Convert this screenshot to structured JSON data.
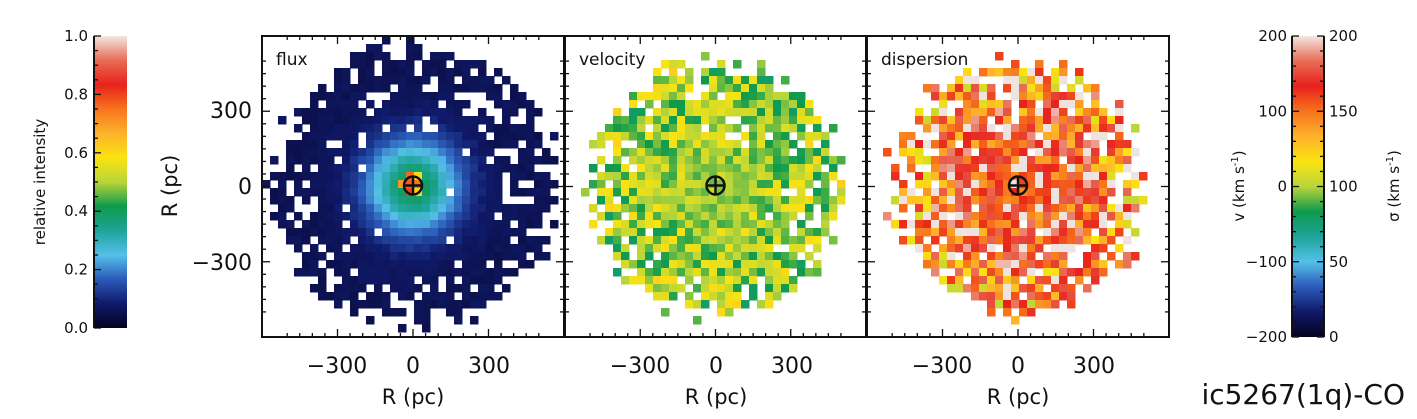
{
  "figure_label": "ic5267(1q)-CO",
  "colors": {
    "axis": "#111111",
    "colormap": [
      "#05021f",
      "#101a6a",
      "#2a5bb8",
      "#55c0ea",
      "#1ea39a",
      "#0e9a4c",
      "#b8d53a",
      "#fbe311",
      "#fdb22a",
      "#f7741d",
      "#e8211c",
      "#e86d55",
      "#f3e7e2"
    ]
  },
  "chart_data": [
    {
      "type": "heatmap",
      "title": "flux",
      "xlabel": "R (pc)",
      "ylabel": "R (pc)",
      "xlim": [
        -600,
        600
      ],
      "ylim": [
        -600,
        600
      ],
      "xticks": [
        -300,
        0,
        300
      ],
      "yticks": [
        -300,
        0,
        300
      ],
      "xtick_labels": [
        "−300",
        "0",
        "300"
      ],
      "ytick_labels": [
        "−300",
        "0",
        "300"
      ],
      "center_marker": "circle-plus at (0, 0)",
      "colorbar": "relative intensity",
      "description_values": {
        "peak_relative_intensity": 0.7,
        "outer_relative_intensity": 0.05,
        "core_radius_pc": 80
      }
    },
    {
      "type": "heatmap",
      "title": "velocity",
      "xlabel": "R (pc)",
      "xlim": [
        -600,
        600
      ],
      "ylim": [
        -600,
        600
      ],
      "xticks": [
        -300,
        0,
        300
      ],
      "xtick_labels": [
        "−300",
        "0",
        "300"
      ],
      "center_marker": "circle-plus at (0, 0)",
      "colorbar": "v (km s-1)",
      "description_values": {
        "typical_velocity_kms": 0,
        "scatter_kms": 40
      }
    },
    {
      "type": "heatmap",
      "title": "dispersion",
      "xlabel": "R (pc)",
      "xlim": [
        -600,
        600
      ],
      "ylim": [
        -600,
        600
      ],
      "xticks": [
        -300,
        0,
        300
      ],
      "xtick_labels": [
        "−300",
        "0",
        "300"
      ],
      "center_marker": "circle-plus at (0, 0)",
      "colorbar": "σ (km s-1)",
      "description_values": {
        "typical_dispersion_kms": 160,
        "scatter_kms": 25
      }
    }
  ],
  "colorbars": {
    "intensity": {
      "label": "relative intensity",
      "range": [
        0.0,
        1.0
      ],
      "ticks": [
        "0.0",
        "0.2",
        "0.4",
        "0.6",
        "0.8",
        "1.0"
      ],
      "tick_values": [
        0.0,
        0.2,
        0.4,
        0.6,
        0.8,
        1.0
      ]
    },
    "velocity": {
      "label_main": "v (km s",
      "label_sup": "-1",
      "label_end": ")",
      "range": [
        -200,
        200
      ],
      "ticks": [
        "−200",
        "−100",
        "0",
        "100",
        "200"
      ],
      "tick_values": [
        -200,
        -100,
        0,
        100,
        200
      ]
    },
    "dispersion": {
      "label_main": "σ (km s",
      "label_sup": "-1",
      "label_end": ")",
      "range": [
        0,
        200
      ],
      "ticks": [
        "0",
        "50",
        "100",
        "150",
        "200"
      ],
      "tick_values": [
        0,
        50,
        100,
        150,
        200
      ]
    }
  }
}
